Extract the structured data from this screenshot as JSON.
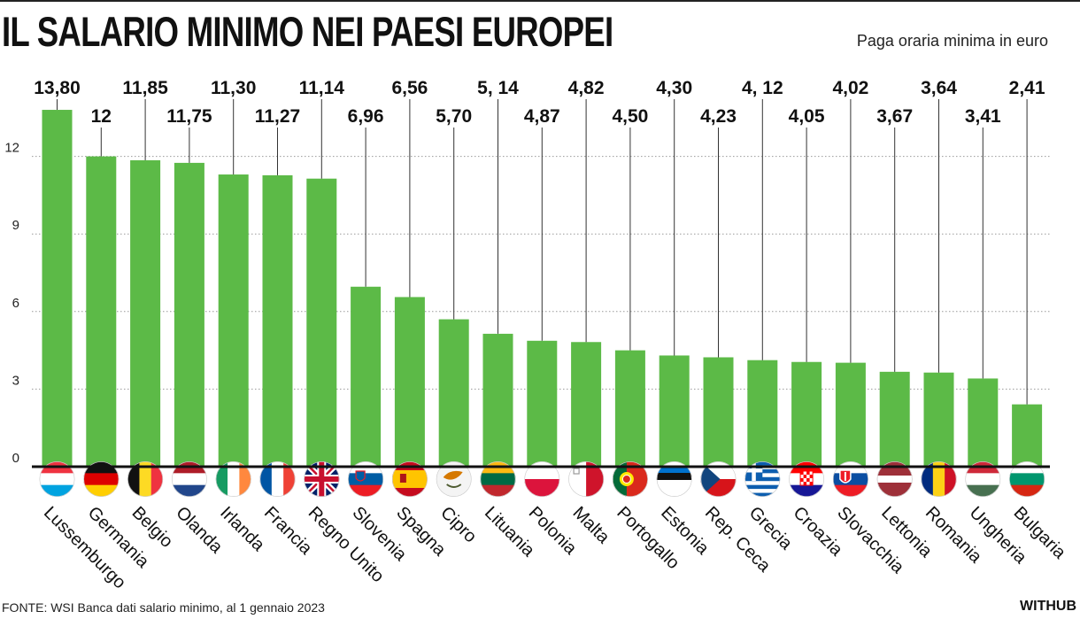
{
  "title": "IL SALARIO MINIMO NEI PAESI EUROPEI",
  "subtitle": "Paga oraria minima in euro",
  "source": "FONTE: WSI Banca dati salario minimo, al 1 gennaio 2023",
  "brand": "WITHUB",
  "colors": {
    "bar": "#5cba47",
    "grid": "#999999",
    "baseline": "#111111",
    "leader": "#333333"
  },
  "chart_data": {
    "type": "bar",
    "title": "IL SALARIO MINIMO NEI PAESI EUROPEI",
    "subtitle": "Paga oraria minima in euro",
    "xlabel": "",
    "ylabel": "",
    "ylim": [
      0,
      14
    ],
    "yticks": [
      0,
      3,
      6,
      9,
      12
    ],
    "grid": true,
    "categories": [
      "Lussemburgo",
      "Germania",
      "Belgio",
      "Olanda",
      "Irlanda",
      "Francia",
      "Regno Unito",
      "Slovenia",
      "Spagna",
      "Cipro",
      "Lituania",
      "Polonia",
      "Malta",
      "Portogallo",
      "Estonia",
      "Rep. Ceca",
      "Grecia",
      "Croazia",
      "Slovacchia",
      "Lettonia",
      "Romania",
      "Ungheria",
      "Bulgaria"
    ],
    "values": [
      13.8,
      12,
      11.85,
      11.75,
      11.3,
      11.27,
      11.14,
      6.96,
      6.56,
      5.7,
      5.14,
      4.87,
      4.82,
      4.5,
      4.3,
      4.23,
      4.12,
      4.05,
      4.02,
      3.67,
      3.64,
      3.41,
      2.41
    ],
    "value_labels": [
      "13,80",
      "12",
      "11,85",
      "11,75",
      "11,30",
      "11,27",
      "11,14",
      "6,96",
      "6,56",
      "5,70",
      "5, 14",
      "4,87",
      "4,82",
      "4,50",
      "4,30",
      "4,23",
      "4, 12",
      "4,05",
      "4,02",
      "3,67",
      "3,64",
      "3,41",
      "2,41"
    ],
    "flags": [
      "luxembourg-flag",
      "germany-flag",
      "belgium-flag",
      "netherlands-flag",
      "ireland-flag",
      "france-flag",
      "uk-flag",
      "slovenia-flag",
      "spain-flag",
      "cyprus-flag",
      "lithuania-flag",
      "poland-flag",
      "malta-flag",
      "portugal-flag",
      "estonia-flag",
      "czech-flag",
      "greece-flag",
      "croatia-flag",
      "slovakia-flag",
      "latvia-flag",
      "romania-flag",
      "hungary-flag",
      "bulgaria-flag"
    ]
  }
}
